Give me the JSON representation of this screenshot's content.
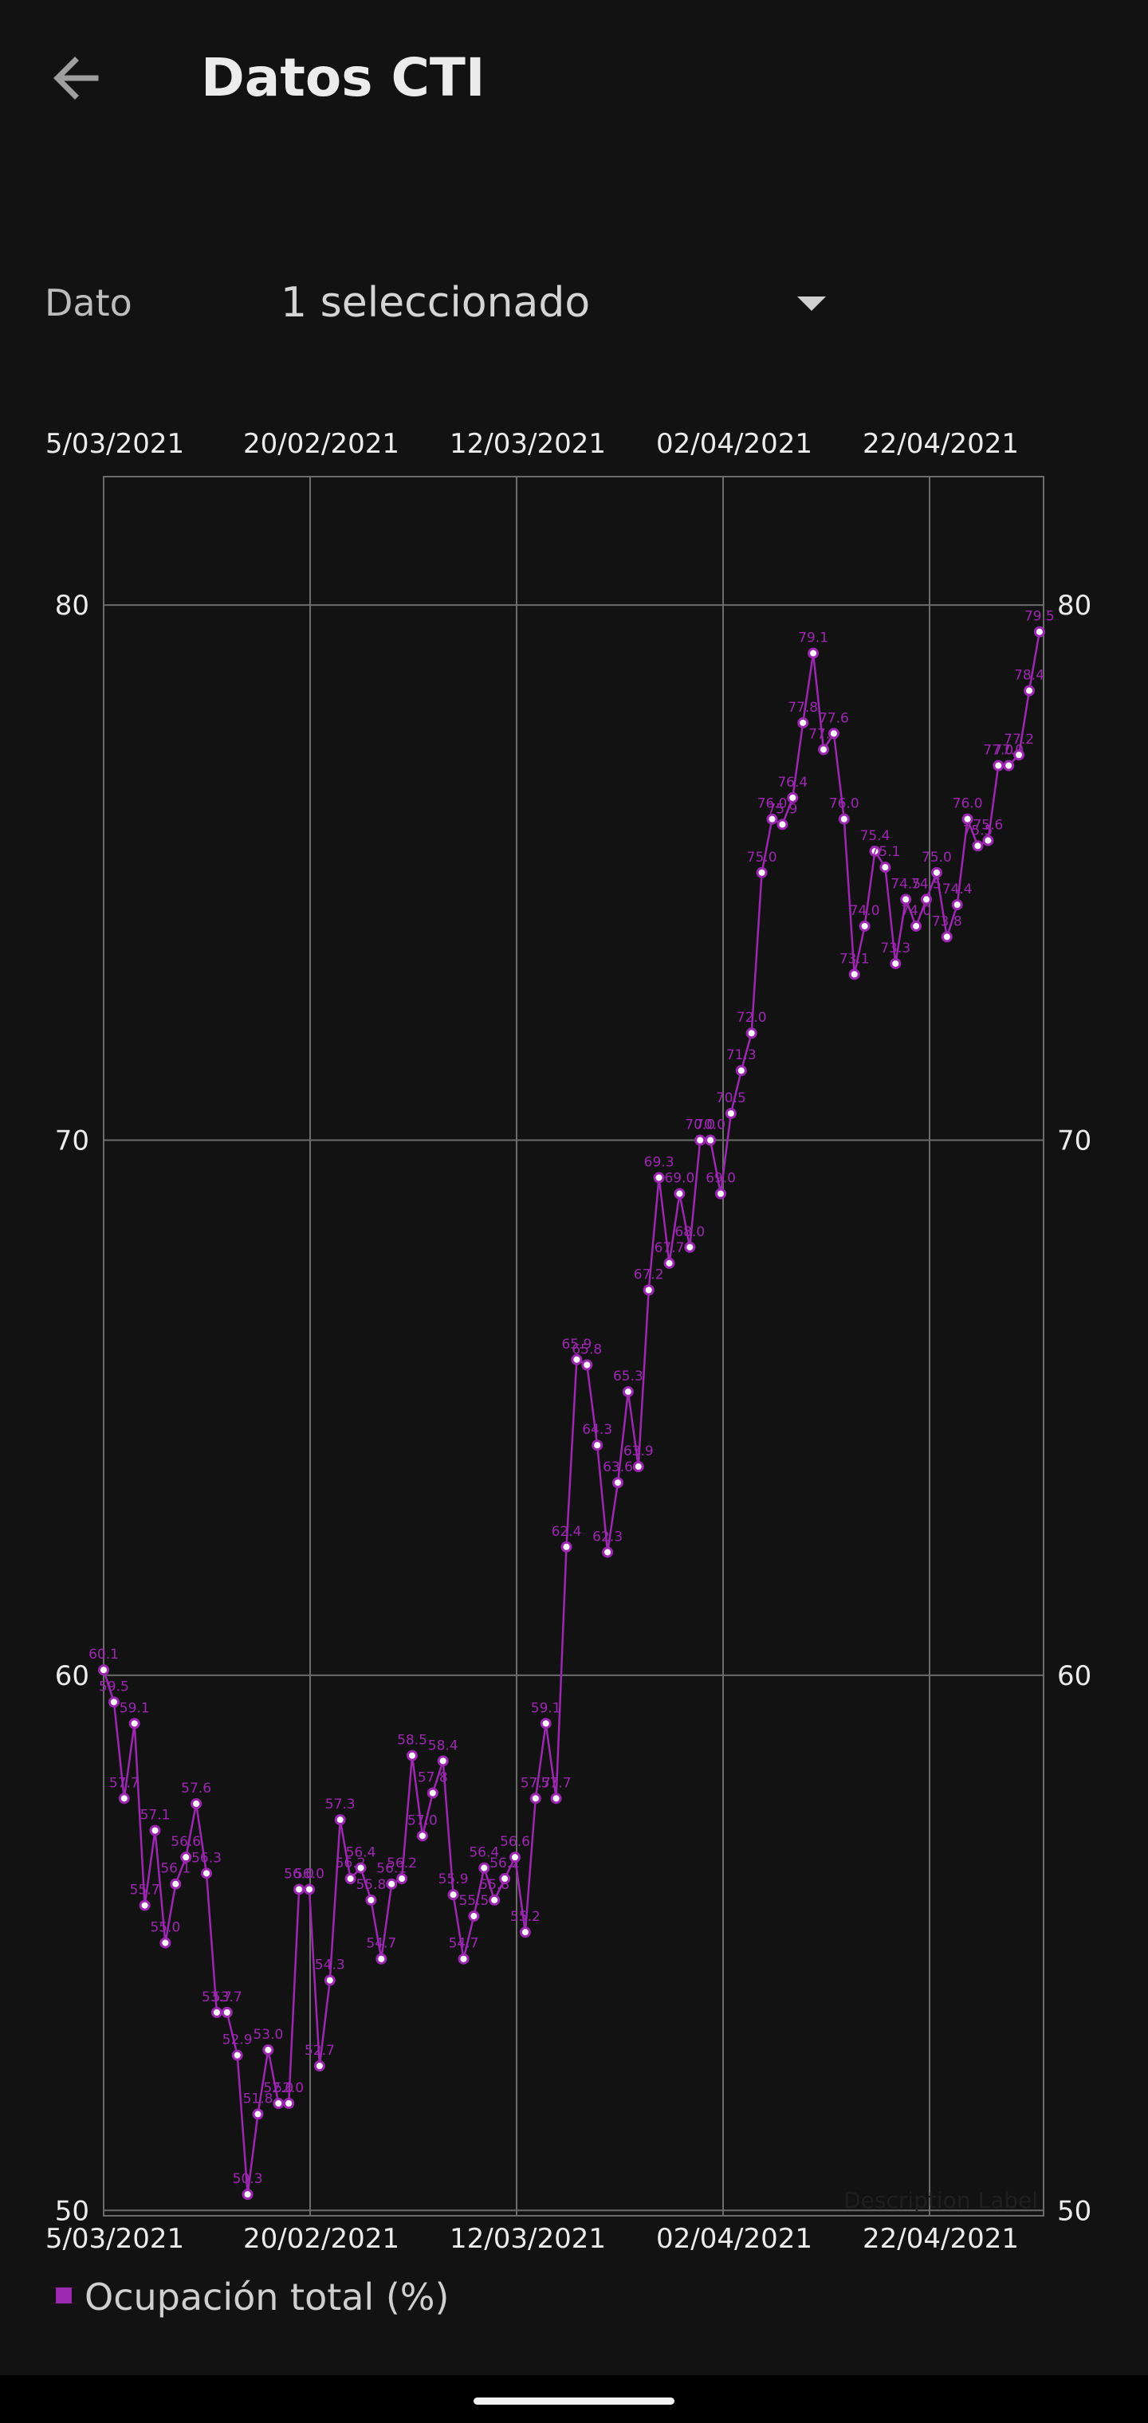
{
  "app": {
    "title": "Datos CTI",
    "back_icon": "arrow-back-icon"
  },
  "filter": {
    "label": "Dato",
    "selected_value": "1 seleccionado",
    "dropdown_icon": "dropdown-arrow-icon"
  },
  "chart_data": {
    "type": "line",
    "description_label": "Description Label",
    "x_tick_labels": [
      "5/03/2021",
      "20/02/2021",
      "12/03/2021",
      "02/04/2021",
      "22/04/2021"
    ],
    "y_ticks": [
      50,
      60,
      70,
      80
    ],
    "ylim": [
      49.9,
      82.4
    ],
    "grid": true,
    "legend_position": "bottom-left",
    "series": [
      {
        "name": "Ocupación total (%)",
        "color": "#9c27b0",
        "values": [
          60.1,
          59.5,
          57.7,
          59.1,
          55.7,
          57.1,
          55.0,
          56.1,
          56.6,
          57.6,
          56.3,
          53.7,
          53.7,
          52.9,
          50.3,
          51.8,
          53.0,
          52.0,
          52.0,
          56.0,
          56.0,
          52.7,
          54.3,
          57.3,
          56.2,
          56.4,
          55.8,
          54.7,
          56.1,
          56.2,
          58.5,
          57.0,
          57.8,
          58.4,
          55.9,
          54.7,
          55.5,
          56.4,
          55.8,
          56.2,
          56.6,
          55.2,
          57.7,
          59.1,
          57.7,
          62.4,
          65.9,
          65.8,
          64.3,
          62.3,
          63.6,
          65.3,
          63.9,
          67.2,
          69.3,
          67.7,
          69.0,
          68.0,
          70.0,
          70.0,
          69.0,
          70.5,
          71.3,
          72.0,
          75.0,
          76.0,
          75.9,
          76.4,
          77.8,
          79.1,
          77.3,
          77.6,
          76.0,
          73.1,
          74.0,
          75.4,
          75.1,
          73.3,
          74.5,
          74.0,
          74.5,
          75.0,
          73.8,
          74.4,
          76.0,
          75.5,
          75.6,
          77.0,
          77.0,
          77.2,
          78.4,
          79.5
        ]
      }
    ]
  }
}
